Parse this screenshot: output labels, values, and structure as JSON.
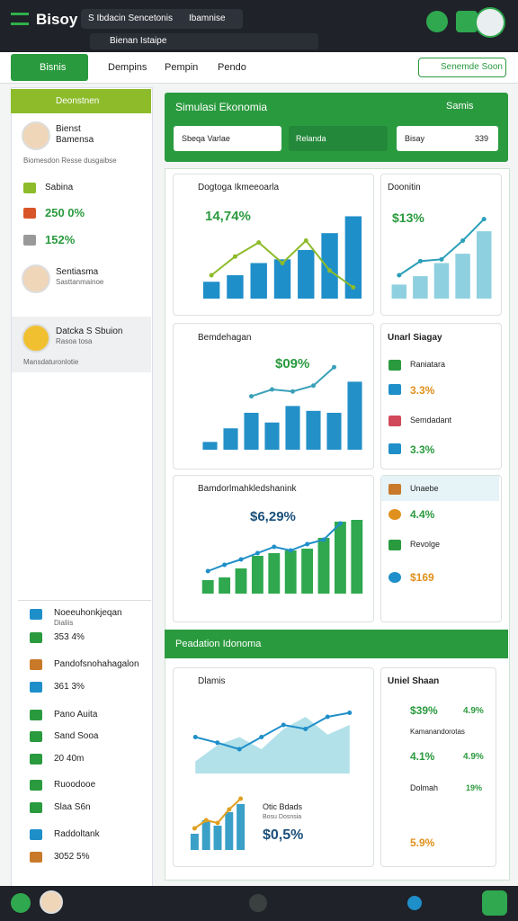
{
  "header": {
    "app_title": "Bisoy",
    "search": "S Ibdacin Sencetonis",
    "search_tag": "Ibamnise",
    "subsearch": "Bienan Istaipe"
  },
  "nav": {
    "active_tab": "Bisnis",
    "links": [
      "Dempins",
      "Pempin",
      "Pendo"
    ],
    "button": "Senemde Soon"
  },
  "sidebar": {
    "title": "Deonstnen",
    "profile1": {
      "name": "Bienst",
      "role": "Bamensa",
      "note": "Biomesdon Resse dusgaibse"
    },
    "stats": [
      "Sabina",
      "250 0%",
      "152%"
    ],
    "profile2": {
      "name": "Sentiasma",
      "role": "Sasttanmainoe"
    },
    "profile3": {
      "name": "Datcka S Sbuion",
      "role": "Rasoa tosa",
      "note": "Mansdaturonlotie"
    },
    "list": [
      "Noeeuhonkjeqan",
      "Dialiis",
      "353 4%",
      "Pandofsnohahagalon",
      "361 3%",
      "Pano Auita",
      "Sand Sooa",
      "20 40m",
      "Ruoodooe",
      "Slaa S6n",
      "Raddoltank",
      "3052 5%"
    ]
  },
  "main": {
    "title": "Simulasi Ekonomia",
    "menu": "Samis",
    "inputs": [
      "Sbeqa Varlae",
      "Relanda",
      "Bisay",
      "339"
    ],
    "section2": "Peadation Idonoma"
  },
  "cards": {
    "c1": {
      "title": "Dogtoga Ikmeeoarla",
      "value": "14,74%"
    },
    "c2": {
      "title": "Doonitin",
      "value": "$13%"
    },
    "c3": {
      "title": "Bemdehagan",
      "value": "$09%"
    },
    "c4": {
      "title": "Bamdorlmahkledshanink",
      "value": "$6,29%"
    },
    "c5": {
      "title": "Dlamis",
      "value": "$0,5%",
      "sub": "Otic Bdads",
      "subnote": "Bosu Dosnsia"
    },
    "list1": {
      "title": "Unarl Siagay",
      "items": [
        "Raniatara",
        "3.3%",
        "Semdadant",
        "3.3%"
      ]
    },
    "list2": {
      "title": "Unaebe",
      "items": [
        "4.4%",
        "Revolge",
        "$169"
      ]
    },
    "list3": {
      "title": "Uniel Shaan",
      "items": [
        "$39%",
        "4.9%",
        "Kamanandorotas",
        "4.1%",
        "4.9%",
        "Dolmah",
        "19%",
        "5.9%"
      ]
    }
  },
  "charts": {
    "c1": {
      "ylim": [
        0,
        100
      ],
      "bar_color": "#1f8fc9",
      "line_color": "#8dbb2a",
      "bars": [
        18,
        25,
        38,
        42,
        52,
        70,
        88
      ],
      "line": [
        25,
        45,
        60,
        38,
        62,
        30,
        12
      ]
    },
    "c2": {
      "ylim": [
        0,
        100
      ],
      "bar_color": "#8fd0e0",
      "line_color": "#2a9fb8",
      "bars": [
        15,
        24,
        38,
        48,
        72
      ],
      "line": [
        25,
        40,
        42,
        62,
        85
      ]
    },
    "c3": {
      "ylim": [
        0,
        100
      ],
      "bar_color": "#2390c8",
      "line_color": "#3aa0b8",
      "bars": [
        8,
        22,
        38,
        28,
        45,
        40,
        38,
        70
      ],
      "line": [
        null,
        null,
        55,
        62,
        60,
        66,
        85,
        null
      ]
    },
    "c4": {
      "ylim": [
        0,
        100
      ],
      "bar_color": "#2fa84f",
      "line_color": "#1f8fc9",
      "bars": [
        15,
        18,
        28,
        42,
        45,
        48,
        50,
        62,
        80,
        82
      ],
      "line": [
        25,
        32,
        38,
        45,
        52,
        48,
        55,
        60,
        78,
        null
      ]
    },
    "c5": {
      "ylim": [
        0,
        100
      ],
      "bar_color": "#9fd9e4",
      "line_color": "#1f8fc9",
      "area": [
        15,
        35,
        45,
        30,
        55,
        70,
        48,
        60
      ],
      "line": [
        45,
        38,
        30,
        45,
        60,
        55,
        70,
        75
      ]
    },
    "c6": {
      "ylim": [
        0,
        100
      ],
      "bar_color": "#3aa0c8",
      "line_color": "#e0a020",
      "bars": [
        30,
        55,
        45,
        70,
        85
      ],
      "line": [
        40,
        55,
        50,
        75,
        95
      ]
    }
  }
}
